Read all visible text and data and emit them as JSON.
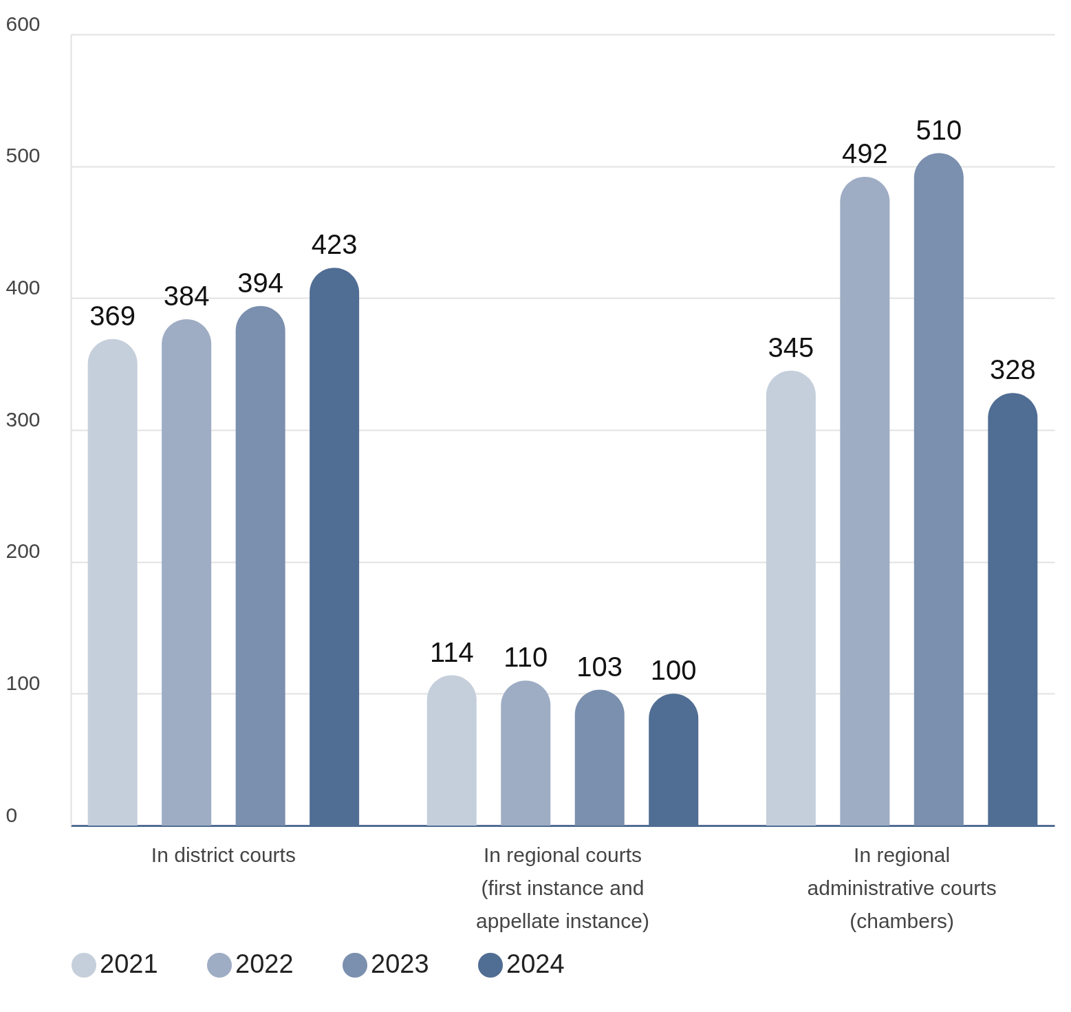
{
  "chart_data": {
    "type": "bar",
    "categories": [
      "In district courts",
      "In regional courts (first instance and appellate instance)",
      "In regional administrative courts (chambers)"
    ],
    "series": [
      {
        "name": "2021",
        "color": "#c5cfdb",
        "values": [
          369,
          114,
          345
        ]
      },
      {
        "name": "2022",
        "color": "#9eadc4",
        "values": [
          384,
          110,
          492
        ]
      },
      {
        "name": "2023",
        "color": "#7b8fae",
        "values": [
          394,
          103,
          510
        ]
      },
      {
        "name": "2024",
        "color": "#506d93",
        "values": [
          423,
          100,
          328
        ]
      }
    ],
    "ylim": [
      0,
      600
    ],
    "yticks": [
      0,
      100,
      200,
      300,
      400,
      500,
      600
    ],
    "grid": "y",
    "legend": "bottom left",
    "data_labels": true
  }
}
